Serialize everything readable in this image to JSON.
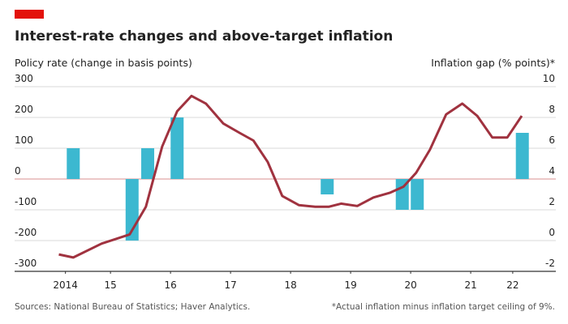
{
  "chart_data": {
    "type": "combo",
    "title": "Interest-rate changes and above-target inflation",
    "source": "Sources: National Bureau of Statistics; Haver Analytics.",
    "footnote": "*Actual inflation minus inflation target ceiling of 9%.",
    "xlim": [
      2013.93,
      2022.58
    ],
    "xticks": [
      {
        "value": 2014.75,
        "label": "2014"
      },
      {
        "value": 2015.5,
        "label": "15"
      },
      {
        "value": 2016.5,
        "label": "16"
      },
      {
        "value": 2017.5,
        "label": "17"
      },
      {
        "value": 2018.5,
        "label": "18"
      },
      {
        "value": 2019.5,
        "label": "19"
      },
      {
        "value": 2020.5,
        "label": "20"
      },
      {
        "value": 2021.5,
        "label": "21"
      },
      {
        "value": 2022.2,
        "label": "22"
      }
    ],
    "ylim": [
      -300,
      300
    ],
    "yticks": [
      300,
      200,
      100,
      0,
      -100,
      -200,
      -300
    ],
    "y2lim": [
      -2,
      10
    ],
    "y2ticks": [
      10,
      8,
      6,
      4,
      2,
      0,
      -2
    ],
    "grid": true,
    "series": [
      {
        "name": "Policy rate (change in basis points)",
        "kind": "bar",
        "color": "#3cb8d0",
        "x": [
          2014.88,
          2015.86,
          2016.12,
          2016.61,
          2019.11,
          2020.36,
          2020.61,
          2022.36
        ],
        "values": [
          100,
          -200,
          100,
          200,
          -50,
          -100,
          -100,
          150
        ]
      },
      {
        "name": "Inflation gap (% points)*",
        "kind": "line",
        "axis": "y2",
        "color": "#a0323f",
        "x": [
          2014.64,
          2014.88,
          2015.35,
          2015.82,
          2016.09,
          2016.36,
          2016.61,
          2016.85,
          2017.09,
          2017.38,
          2017.65,
          2017.88,
          2018.12,
          2018.36,
          2018.64,
          2018.91,
          2019.14,
          2019.34,
          2019.61,
          2019.88,
          2020.15,
          2020.38,
          2020.59,
          2020.82,
          2021.09,
          2021.36,
          2021.61,
          2021.86,
          2022.11,
          2022.35
        ],
        "values": [
          -0.9,
          -1.1,
          -0.2,
          0.4,
          2.2,
          6.1,
          8.4,
          9.4,
          8.9,
          7.6,
          7.0,
          6.5,
          5.1,
          2.9,
          2.3,
          2.2,
          2.2,
          2.4,
          2.25,
          2.8,
          3.1,
          3.5,
          4.4,
          5.9,
          8.2,
          8.9,
          8.1,
          6.7,
          6.7,
          8.1
        ]
      }
    ]
  }
}
